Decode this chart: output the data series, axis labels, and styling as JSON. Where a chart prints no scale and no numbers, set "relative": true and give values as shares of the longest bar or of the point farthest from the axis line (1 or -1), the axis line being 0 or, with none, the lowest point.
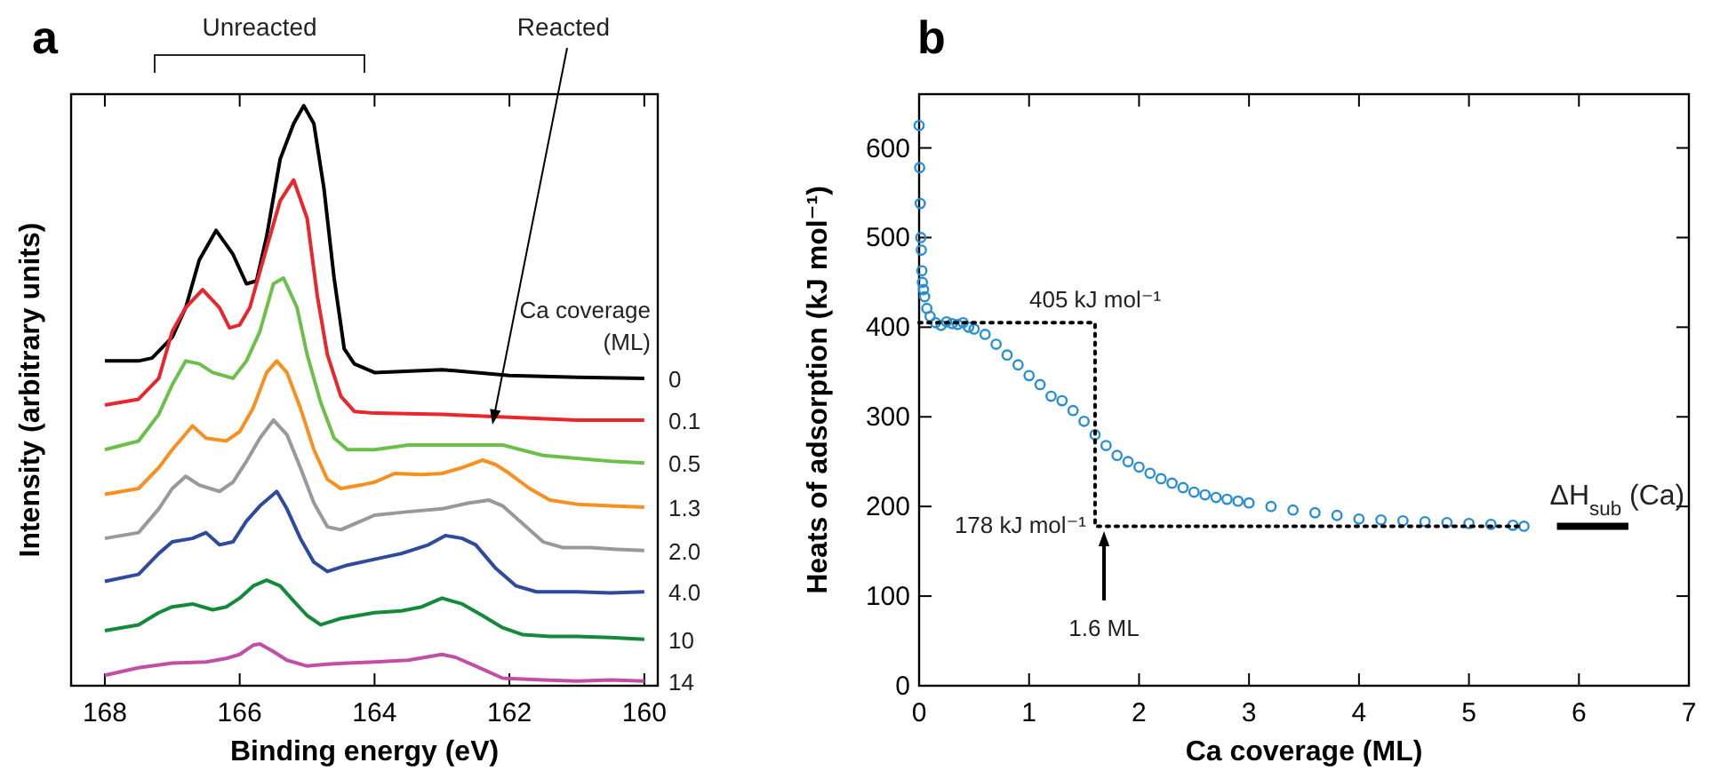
{
  "chart_data": [
    {
      "type": "line",
      "title": "a",
      "xlabel": "Binding energy (eV)",
      "ylabel": "Intensity (arbitrary units)",
      "legend_title": "Ca coverage (ML)",
      "relative": true,
      "xlim": [
        168.5,
        159.8
      ],
      "xticks": [
        168,
        166,
        164,
        162,
        160
      ],
      "annotations": [
        "Unreacted",
        "Reacted"
      ],
      "series": [
        {
          "name": "0",
          "color": "#000000",
          "x": [
            168,
            167.5,
            167.3,
            167,
            166.8,
            166.6,
            166.35,
            166.1,
            165.9,
            165.75,
            165.6,
            165.4,
            165.2,
            165.05,
            164.9,
            164.75,
            164.6,
            164.45,
            164.3,
            164,
            163,
            162,
            161,
            160
          ],
          "values": [
            0.56,
            0.56,
            0.565,
            0.601,
            0.652,
            0.734,
            0.785,
            0.744,
            0.693,
            0.698,
            0.775,
            0.908,
            0.969,
            1.0,
            0.969,
            0.857,
            0.703,
            0.581,
            0.555,
            0.54,
            0.545,
            0.535,
            0.532,
            0.53
          ]
        },
        {
          "name": "0.1",
          "color": "#e8262b",
          "x": [
            168,
            167.5,
            167.2,
            167,
            166.8,
            166.55,
            166.3,
            166.15,
            166,
            165.85,
            165.6,
            165.4,
            165.2,
            165,
            164.85,
            164.7,
            164.5,
            164.3,
            164,
            163,
            162,
            161,
            160
          ],
          "values": [
            0.484,
            0.494,
            0.53,
            0.611,
            0.652,
            0.683,
            0.652,
            0.617,
            0.622,
            0.652,
            0.755,
            0.836,
            0.872,
            0.806,
            0.673,
            0.571,
            0.499,
            0.473,
            0.47,
            0.468,
            0.463,
            0.458,
            0.458
          ]
        },
        {
          "name": "0.5",
          "color": "#6cc04a",
          "x": [
            168,
            167.5,
            167.2,
            167,
            166.8,
            166.6,
            166.4,
            166.1,
            165.9,
            165.7,
            165.5,
            165.35,
            165.15,
            165,
            164.8,
            164.6,
            164.4,
            164,
            163.5,
            163,
            162.5,
            162.1,
            161.5,
            161,
            160.5,
            160
          ],
          "values": [
            0.407,
            0.422,
            0.468,
            0.519,
            0.56,
            0.555,
            0.54,
            0.53,
            0.56,
            0.611,
            0.693,
            0.703,
            0.652,
            0.571,
            0.489,
            0.427,
            0.407,
            0.407,
            0.415,
            0.415,
            0.415,
            0.415,
            0.397,
            0.392,
            0.387,
            0.384
          ]
        },
        {
          "name": "1.3",
          "color": "#f7901e",
          "x": [
            168,
            167.5,
            167.2,
            167,
            166.7,
            166.5,
            166.2,
            166,
            165.8,
            165.6,
            165.45,
            165.3,
            165.1,
            164.9,
            164.7,
            164.5,
            164.2,
            164,
            163.7,
            163.3,
            163,
            162.7,
            162.4,
            162.2,
            162,
            161.7,
            161.4,
            161,
            160.5,
            160
          ],
          "values": [
            0.33,
            0.34,
            0.376,
            0.407,
            0.448,
            0.427,
            0.422,
            0.438,
            0.479,
            0.54,
            0.56,
            0.54,
            0.479,
            0.407,
            0.356,
            0.34,
            0.346,
            0.351,
            0.366,
            0.364,
            0.366,
            0.376,
            0.389,
            0.381,
            0.366,
            0.34,
            0.32,
            0.313,
            0.31,
            0.308
          ]
        },
        {
          "name": "2.0",
          "color": "#999999",
          "x": [
            168,
            167.5,
            167.2,
            167,
            166.8,
            166.6,
            166.3,
            166.1,
            165.9,
            165.7,
            165.5,
            165.3,
            165.1,
            164.9,
            164.7,
            164.5,
            164.2,
            164,
            163.5,
            163,
            162.6,
            162.3,
            162.1,
            161.8,
            161.5,
            161.2,
            160.8,
            160.4,
            160
          ],
          "values": [
            0.254,
            0.264,
            0.305,
            0.34,
            0.361,
            0.346,
            0.335,
            0.351,
            0.387,
            0.427,
            0.458,
            0.433,
            0.376,
            0.315,
            0.274,
            0.269,
            0.284,
            0.294,
            0.3,
            0.305,
            0.315,
            0.32,
            0.31,
            0.279,
            0.248,
            0.238,
            0.238,
            0.235,
            0.233
          ]
        },
        {
          "name": "4.0",
          "color": "#2e4a9e",
          "x": [
            168,
            167.5,
            167.2,
            167,
            166.7,
            166.5,
            166.3,
            166.1,
            165.9,
            165.7,
            165.45,
            165.3,
            165.1,
            164.9,
            164.7,
            164.4,
            164,
            163.6,
            163.2,
            162.95,
            162.7,
            162.5,
            162.2,
            161.9,
            161.6,
            161,
            160.5,
            160
          ],
          "values": [
            0.18,
            0.192,
            0.228,
            0.248,
            0.254,
            0.264,
            0.243,
            0.248,
            0.284,
            0.31,
            0.335,
            0.305,
            0.254,
            0.213,
            0.197,
            0.208,
            0.218,
            0.228,
            0.243,
            0.259,
            0.254,
            0.243,
            0.202,
            0.172,
            0.162,
            0.162,
            0.16,
            0.162
          ]
        },
        {
          "name": "10",
          "color": "#138a3a",
          "x": [
            168,
            167.5,
            167.2,
            167,
            166.7,
            166.4,
            166.2,
            166,
            165.8,
            165.6,
            165.4,
            165.2,
            165,
            164.8,
            164.5,
            164,
            163.6,
            163.3,
            163,
            162.7,
            162.4,
            162.1,
            161.8,
            161.4,
            161,
            160.5,
            160
          ],
          "values": [
            0.095,
            0.105,
            0.126,
            0.136,
            0.141,
            0.131,
            0.136,
            0.151,
            0.172,
            0.182,
            0.172,
            0.146,
            0.121,
            0.105,
            0.116,
            0.126,
            0.129,
            0.136,
            0.151,
            0.141,
            0.121,
            0.1,
            0.088,
            0.085,
            0.085,
            0.083,
            0.08
          ]
        },
        {
          "name": "14",
          "color": "#c24fa6",
          "x": [
            168,
            167.5,
            167,
            166.5,
            166.2,
            166,
            165.8,
            165.7,
            165.5,
            165.3,
            165,
            164.7,
            164.4,
            164,
            163.5,
            163,
            162.8,
            162.5,
            162.1,
            161.5,
            161,
            160.5,
            160
          ],
          "values": [
            0.018,
            0.031,
            0.039,
            0.041,
            0.047,
            0.054,
            0.07,
            0.072,
            0.059,
            0.044,
            0.034,
            0.037,
            0.039,
            0.041,
            0.044,
            0.054,
            0.049,
            0.034,
            0.013,
            0.01,
            0.008,
            0.01,
            0.008
          ]
        }
      ]
    },
    {
      "type": "scatter",
      "title": "b",
      "xlabel": "Ca coverage (ML)",
      "ylabel": "Heats of adsorption (kJ mol⁻¹)",
      "xlim": [
        0,
        7
      ],
      "xticks": [
        0,
        1,
        2,
        3,
        4,
        5,
        6,
        7
      ],
      "ylim": [
        0,
        660
      ],
      "yticks": [
        0,
        100,
        200,
        300,
        400,
        500,
        600
      ],
      "annotations": [
        "405 kJ mol⁻¹",
        "178 kJ mol⁻¹",
        "1.6 ML"
      ],
      "series": [
        {
          "marker": "circle",
          "color": "#2a8fd0",
          "x": [
            0,
            0.005,
            0.01,
            0.015,
            0.02,
            0.025,
            0.03,
            0.04,
            0.05,
            0.07,
            0.1,
            0.15,
            0.2,
            0.25,
            0.3,
            0.35,
            0.4,
            0.45,
            0.5,
            0.6,
            0.7,
            0.8,
            0.9,
            1.0,
            1.1,
            1.2,
            1.3,
            1.4,
            1.5,
            1.6,
            1.7,
            1.8,
            1.9,
            2.0,
            2.1,
            2.2,
            2.3,
            2.4,
            2.5,
            2.6,
            2.7,
            2.8,
            2.9,
            3.0,
            3.2,
            3.4,
            3.6,
            3.8,
            4.0,
            4.2,
            4.4,
            4.6,
            4.8,
            5.0,
            5.2,
            5.4,
            5.5
          ],
          "values": [
            625,
            578,
            538,
            500,
            486,
            463,
            450,
            442,
            434,
            421,
            412,
            405,
            402,
            406,
            404,
            403,
            405,
            400,
            398,
            392,
            381,
            369,
            358,
            346,
            336,
            323,
            318,
            307,
            295,
            280,
            268,
            257,
            250,
            244,
            237,
            231,
            226,
            221,
            216,
            213,
            210,
            208,
            206,
            204,
            200,
            196,
            193,
            190,
            186,
            185,
            184,
            183,
            182,
            181,
            180,
            179,
            178
          ]
        },
        {
          "type": "line",
          "line_style": "dotted",
          "color": "#000000",
          "x": [
            0,
            1.6,
            1.6,
            5.5
          ],
          "values": [
            405,
            405,
            178,
            178
          ]
        },
        {
          "type": "line",
          "line_style": "solid",
          "name": "ΔH$_{sub}$ (Ca)",
          "color": "#000000",
          "x": [
            5.8,
            6.45
          ],
          "values": [
            178,
            178
          ]
        }
      ]
    }
  ]
}
